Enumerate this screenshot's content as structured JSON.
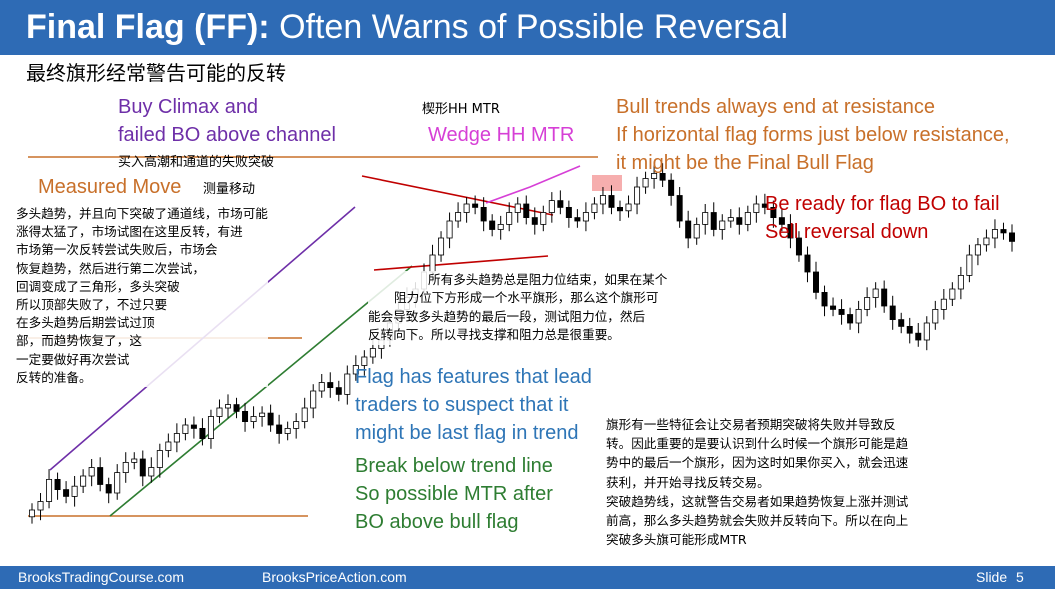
{
  "title": {
    "bold": "Final Flag (FF):",
    "rest": " Often Warns of Possible Reversal"
  },
  "subtitle_cn": "最终旗形经常警告可能的反转",
  "labels": {
    "buy_climax_1": "Buy Climax and",
    "buy_climax_2": "failed BO above channel",
    "buy_climax_cn": "买入高潮和通道的失败突破",
    "measured_move": "Measured Move",
    "measured_move_cn": "测量移动",
    "wedge_cn": "楔形HH MTR",
    "wedge": "Wedge HH MTR",
    "bull_trends_1": "Bull trends always end at resistance",
    "bull_trends_2": "If horizontal flag forms just below resistance,",
    "bull_trends_3": "it might be the Final Bull Flag",
    "be_ready_1": "Be ready for flag BO to fail",
    "be_ready_2": "Sell reversal down",
    "flag_features_1": "Flag has features that lead",
    "flag_features_2": "traders to suspect that it",
    "flag_features_3": "might be last flag in trend",
    "break_1": "Break below trend line",
    "break_2": "So possible MTR after",
    "break_3": "BO above bull flag"
  },
  "notes_cn": {
    "left": [
      "多头趋势，并且向下突破了通道线，市场可能",
      "涨得太猛了，市场试图在这里反转，有进",
      "市场第一次反转尝试失败后，市场会",
      "恢复趋势，然后进行第二次尝试，",
      "回调变成了三角形，多头突破",
      "所以顶部失败了，不过只要",
      "在多头趋势后期尝试过顶",
      "部，而趋势恢复了，这",
      "一定要做好再次尝试",
      "反转的准备。"
    ],
    "middle": [
      "所有多头趋势总是阻力位结束，如果在某个",
      "阻力位下方形成一个水平旗形，那么这个旗形可",
      "能会导致多头趋势的最后一段，测试阻力位，然后",
      "反转向下。所以寻找支撑和阻力总是很重要。"
    ],
    "right": [
      "旗形有一些特征会让交易者预期突破将失败并导致反",
      "转。因此重要的是要认识到什么时候一个旗形可能是趋",
      "势中的最后一个旗形，因为这时如果你买入，就会迅速",
      "获利，并开始寻找反转交易。",
      "突破趋势线，这就警告交易者如果趋势恢复上涨并测试",
      "前高，那么多头趋势就会失败并反转向下。所以在向上",
      "突破多头旗可能形成MTR"
    ]
  },
  "footer": {
    "left": "BrooksTradingCourse.com",
    "center": "BrooksPriceAction.com",
    "slide_label": "Slide",
    "slide_number": "5"
  },
  "colors": {
    "title_bar": "#2E6BB5",
    "purple_channel": "#6E2FA8",
    "orange_levels": "#C8702A",
    "magenta_wedge": "#D63FD6",
    "red_triangle": "#C00000",
    "green_trendline": "#2E7D32",
    "highlight": "#F4A0A0"
  },
  "chart_data": {
    "type": "candlestick",
    "series": [
      {
        "values": [
          0,
          5,
          18,
          12,
          8,
          14,
          20,
          25,
          15,
          10,
          22,
          28,
          30,
          20,
          25,
          35,
          40,
          45,
          50,
          48,
          42,
          55,
          60,
          62,
          58,
          52,
          55,
          57,
          50,
          45,
          48,
          52,
          60,
          70,
          75,
          72,
          68,
          80,
          85,
          90,
          95,
          100,
          110,
          118,
          125,
          130,
          140,
          150,
          160,
          170,
          175,
          180,
          178,
          170,
          165,
          168,
          175,
          180,
          172,
          168,
          175,
          182,
          178,
          172,
          170,
          175,
          180,
          185,
          178,
          176,
          180,
          190,
          195,
          198,
          194,
          185,
          170,
          160,
          168,
          175,
          165,
          170,
          172,
          168,
          175,
          180,
          178,
          172,
          168,
          160,
          150,
          140,
          128,
          120,
          118,
          115,
          110,
          118,
          125,
          130,
          120,
          112,
          108,
          104,
          100,
          110,
          118,
          124,
          130,
          138,
          150,
          156,
          160,
          165,
          163,
          158
        ]
      }
    ]
  }
}
